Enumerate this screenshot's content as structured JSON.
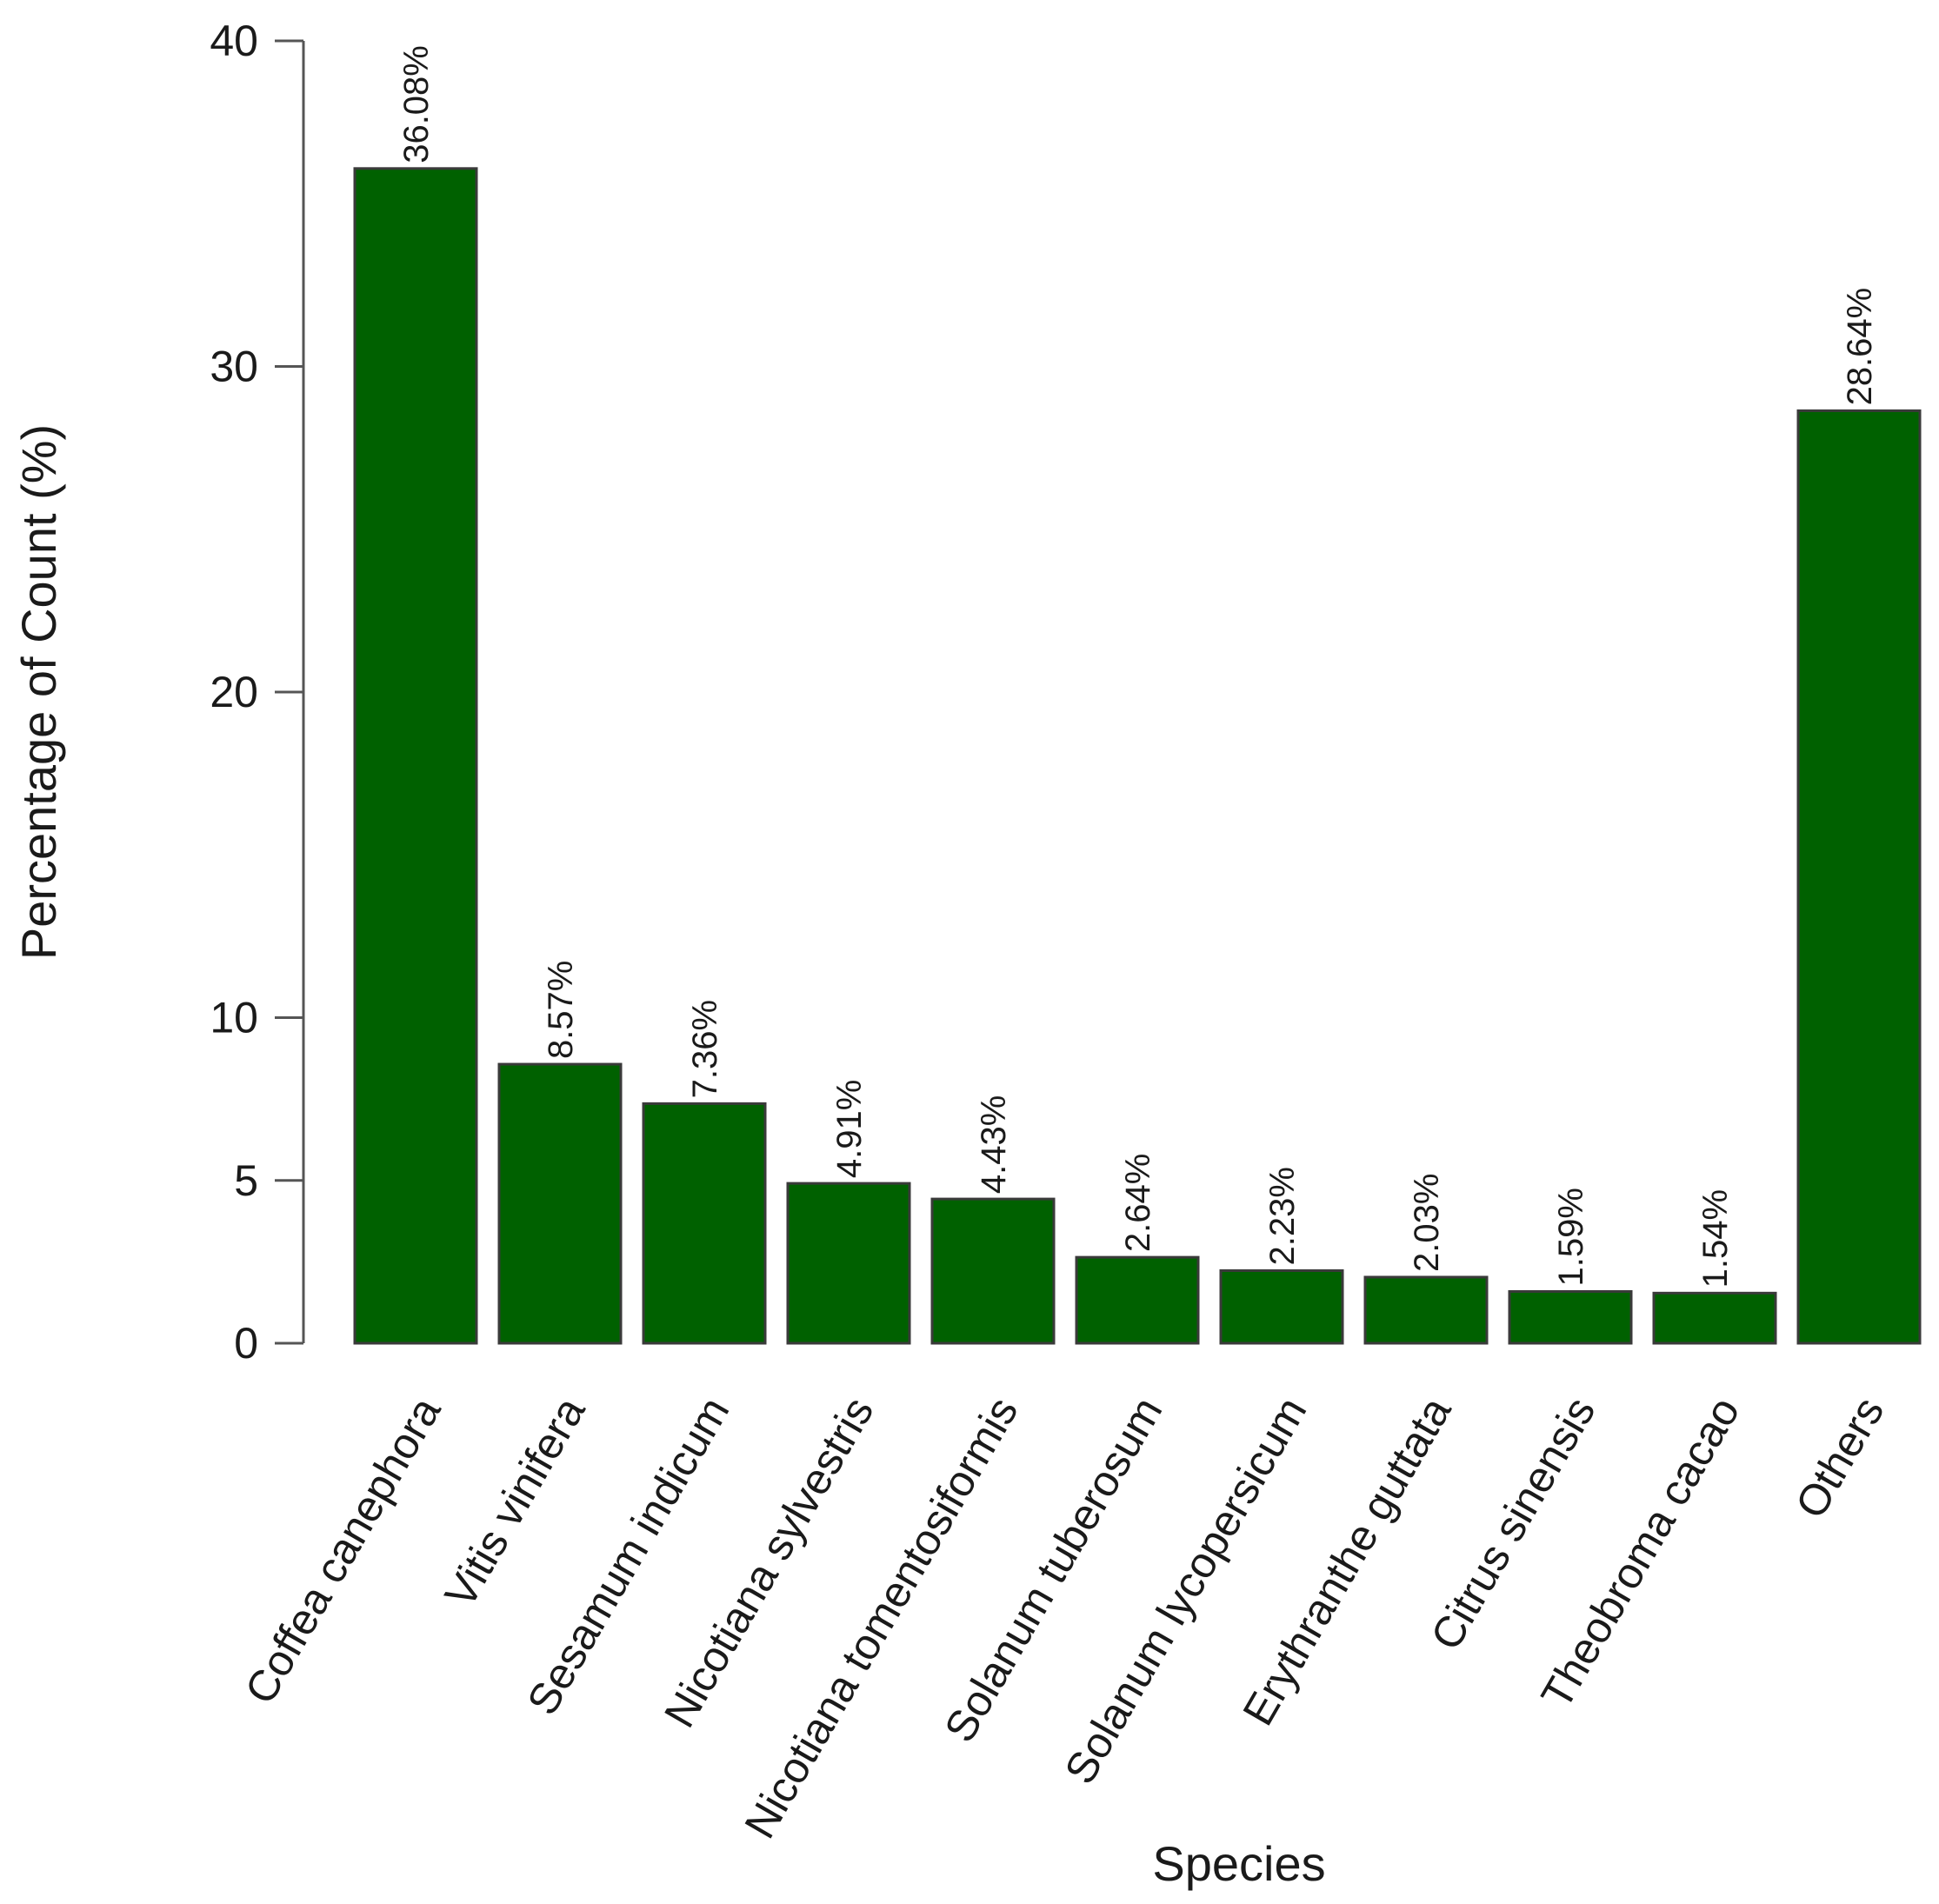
{
  "chart_data": {
    "type": "bar",
    "xlabel": "Species",
    "ylabel": "Percentage of Count (%)",
    "ylim": [
      0,
      40
    ],
    "y_ticks": [
      0,
      5,
      10,
      20,
      30,
      40
    ],
    "grid": false,
    "bar_color": "#006100",
    "categories": [
      "Coffea canephora",
      "Vitis vinifera",
      "Sesamum indicum",
      "Nicotiana sylvestris",
      "Nicotiana tomentosiformis",
      "Solanum tuberosum",
      "Solanum lycopersicum",
      "Erythranthe guttata",
      "Citrus sinensis",
      "Theobroma cacao",
      "Others"
    ],
    "values": [
      36.08,
      8.57,
      7.36,
      4.91,
      4.43,
      2.64,
      2.23,
      2.03,
      1.59,
      1.54,
      28.64
    ],
    "value_labels": [
      "36.08%",
      "8.57%",
      "7.36%",
      "4.91%",
      "4.43%",
      "2.64%",
      "2.23%",
      "2.03%",
      "1.59%",
      "1.54%",
      "28.64%"
    ]
  }
}
